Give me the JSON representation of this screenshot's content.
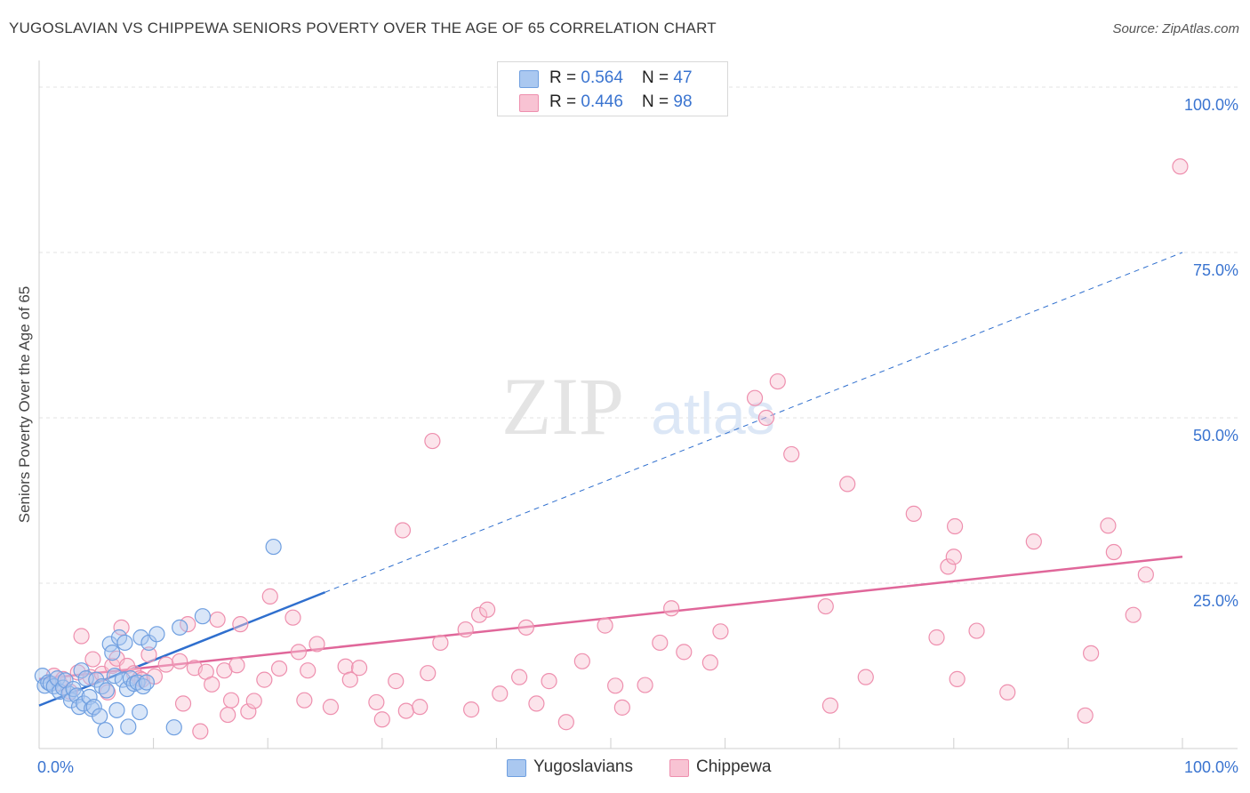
{
  "title": "YUGOSLAVIAN VS CHIPPEWA SENIORS POVERTY OVER THE AGE OF 65 CORRELATION CHART",
  "source": "Source: ZipAtlas.com",
  "watermark": {
    "zip": "ZIP",
    "atlas": "atlas"
  },
  "legend": {
    "rows": [
      {
        "r_label": "R = ",
        "r_value": "0.564",
        "n_label": "N = ",
        "n_value": "47",
        "color": "#aac8f0",
        "border": "#6f9fe0"
      },
      {
        "r_label": "R = ",
        "r_value": "0.446",
        "n_label": "N = ",
        "n_value": "98",
        "color": "#f8c3d3",
        "border": "#ee8fae"
      }
    ]
  },
  "bottom_legend": [
    {
      "label": "Yugoslavians",
      "color": "#aac8f0",
      "border": "#6f9fe0"
    },
    {
      "label": "Chippewa",
      "color": "#f8c3d3",
      "border": "#ee8fae"
    }
  ],
  "chart_data": {
    "type": "scatter",
    "title": "YUGOSLAVIAN VS CHIPPEWA SENIORS POVERTY OVER THE AGE OF 65 CORRELATION CHART",
    "xlabel": "",
    "ylabel": "Seniors Poverty Over the Age of 65",
    "xlim": [
      0,
      100
    ],
    "ylim": [
      0,
      100
    ],
    "x_tick_labels": [
      {
        "value": 0,
        "label": "0.0%"
      },
      {
        "value": 100,
        "label": "100.0%"
      }
    ],
    "y_tick_labels": [
      {
        "value": 25,
        "label": "25.0%"
      },
      {
        "value": 50,
        "label": "50.0%"
      },
      {
        "value": 75,
        "label": "75.0%"
      },
      {
        "value": 100,
        "label": "100.0%"
      }
    ],
    "grid": true,
    "series": [
      {
        "name": "Yugoslavians",
        "color": "#6f9fe0",
        "fill": "#aac8f0",
        "trend_color": "#2f6fce",
        "trend": {
          "x0": 0,
          "y0": 6.5,
          "x1": 100,
          "y1": 75,
          "solid_until_x": 25
        },
        "points": [
          [
            0.3,
            11.0
          ],
          [
            0.5,
            9.5
          ],
          [
            0.8,
            10.0
          ],
          [
            1.0,
            9.8
          ],
          [
            1.3,
            9.4
          ],
          [
            1.6,
            10.6
          ],
          [
            1.8,
            8.6
          ],
          [
            2.1,
            9.2
          ],
          [
            2.3,
            10.3
          ],
          [
            2.6,
            8.3
          ],
          [
            2.8,
            7.3
          ],
          [
            3.0,
            9.0
          ],
          [
            3.3,
            8.0
          ],
          [
            3.5,
            6.3
          ],
          [
            3.7,
            11.8
          ],
          [
            3.9,
            6.8
          ],
          [
            4.1,
            10.6
          ],
          [
            4.4,
            7.8
          ],
          [
            4.6,
            6.0
          ],
          [
            4.8,
            6.3
          ],
          [
            5.0,
            10.4
          ],
          [
            5.3,
            4.9
          ],
          [
            5.5,
            9.4
          ],
          [
            5.8,
            2.8
          ],
          [
            5.9,
            8.8
          ],
          [
            6.2,
            15.8
          ],
          [
            6.4,
            14.5
          ],
          [
            6.6,
            11.0
          ],
          [
            6.8,
            5.8
          ],
          [
            7.0,
            16.8
          ],
          [
            7.3,
            10.4
          ],
          [
            7.5,
            16.0
          ],
          [
            7.7,
            9.0
          ],
          [
            7.8,
            3.3
          ],
          [
            8.0,
            10.6
          ],
          [
            8.3,
            9.8
          ],
          [
            8.6,
            10.0
          ],
          [
            8.8,
            5.5
          ],
          [
            8.9,
            16.8
          ],
          [
            9.1,
            9.4
          ],
          [
            9.4,
            10.0
          ],
          [
            9.6,
            16.0
          ],
          [
            10.3,
            17.3
          ],
          [
            11.8,
            3.2
          ],
          [
            12.3,
            18.3
          ],
          [
            14.3,
            20.0
          ],
          [
            20.5,
            30.5
          ]
        ]
      },
      {
        "name": "Chippewa",
        "color": "#ee8fae",
        "fill": "#f8c3d3",
        "trend_color": "#e0679a",
        "trend": {
          "x0": 0,
          "y0": 10.5,
          "x1": 100,
          "y1": 29
        },
        "points": [
          [
            1.3,
            11.0
          ],
          [
            1.8,
            9.9
          ],
          [
            2.1,
            10.5
          ],
          [
            2.7,
            8.6
          ],
          [
            3.4,
            11.5
          ],
          [
            3.7,
            17.0
          ],
          [
            4.5,
            10.8
          ],
          [
            4.7,
            13.5
          ],
          [
            5.5,
            11.3
          ],
          [
            6.0,
            8.5
          ],
          [
            6.4,
            12.5
          ],
          [
            6.8,
            13.6
          ],
          [
            7.2,
            18.3
          ],
          [
            7.7,
            12.5
          ],
          [
            8.3,
            11.4
          ],
          [
            8.8,
            10.6
          ],
          [
            9.0,
            10.4
          ],
          [
            9.6,
            14.2
          ],
          [
            10.1,
            10.9
          ],
          [
            11.1,
            12.7
          ],
          [
            12.3,
            13.2
          ],
          [
            12.6,
            6.8
          ],
          [
            13.0,
            18.8
          ],
          [
            13.6,
            12.2
          ],
          [
            14.1,
            2.6
          ],
          [
            14.6,
            11.6
          ],
          [
            15.1,
            9.7
          ],
          [
            15.6,
            19.5
          ],
          [
            16.2,
            11.8
          ],
          [
            16.5,
            5.1
          ],
          [
            16.8,
            7.3
          ],
          [
            17.3,
            12.6
          ],
          [
            17.6,
            18.8
          ],
          [
            18.3,
            5.6
          ],
          [
            18.8,
            7.2
          ],
          [
            19.7,
            10.4
          ],
          [
            20.2,
            23.0
          ],
          [
            21.0,
            12.1
          ],
          [
            22.2,
            19.8
          ],
          [
            22.7,
            14.6
          ],
          [
            23.2,
            7.3
          ],
          [
            23.5,
            11.8
          ],
          [
            24.3,
            15.8
          ],
          [
            25.5,
            6.3
          ],
          [
            26.8,
            12.4
          ],
          [
            27.2,
            10.4
          ],
          [
            28.0,
            12.2
          ],
          [
            29.5,
            7.0
          ],
          [
            30.0,
            4.4
          ],
          [
            31.2,
            10.2
          ],
          [
            31.8,
            33.0
          ],
          [
            32.1,
            5.7
          ],
          [
            33.3,
            6.3
          ],
          [
            34.0,
            11.4
          ],
          [
            34.4,
            46.5
          ],
          [
            35.1,
            16.0
          ],
          [
            37.3,
            18.0
          ],
          [
            37.8,
            5.9
          ],
          [
            38.5,
            20.2
          ],
          [
            39.2,
            21.0
          ],
          [
            40.3,
            8.3
          ],
          [
            42.0,
            10.8
          ],
          [
            42.6,
            18.3
          ],
          [
            43.5,
            6.8
          ],
          [
            44.6,
            10.2
          ],
          [
            46.1,
            4.0
          ],
          [
            47.5,
            13.2
          ],
          [
            49.5,
            18.6
          ],
          [
            50.4,
            9.5
          ],
          [
            51.0,
            6.2
          ],
          [
            53.0,
            9.6
          ],
          [
            54.3,
            16.0
          ],
          [
            55.3,
            21.2
          ],
          [
            56.4,
            14.6
          ],
          [
            58.7,
            13.0
          ],
          [
            59.6,
            17.7
          ],
          [
            62.6,
            53.0
          ],
          [
            63.6,
            50.0
          ],
          [
            64.6,
            55.5
          ],
          [
            65.8,
            44.5
          ],
          [
            68.8,
            21.5
          ],
          [
            69.2,
            6.5
          ],
          [
            70.7,
            40.0
          ],
          [
            72.3,
            10.8
          ],
          [
            76.5,
            35.5
          ],
          [
            78.5,
            16.8
          ],
          [
            79.5,
            27.5
          ],
          [
            80.0,
            29.0
          ],
          [
            80.1,
            33.6
          ],
          [
            80.3,
            10.5
          ],
          [
            82.0,
            17.8
          ],
          [
            84.7,
            8.5
          ],
          [
            87.0,
            31.3
          ],
          [
            91.5,
            5.0
          ],
          [
            92.0,
            14.4
          ],
          [
            93.5,
            33.7
          ],
          [
            94.0,
            29.7
          ],
          [
            95.7,
            20.2
          ],
          [
            96.8,
            26.3
          ],
          [
            99.8,
            88.0
          ]
        ]
      }
    ]
  }
}
